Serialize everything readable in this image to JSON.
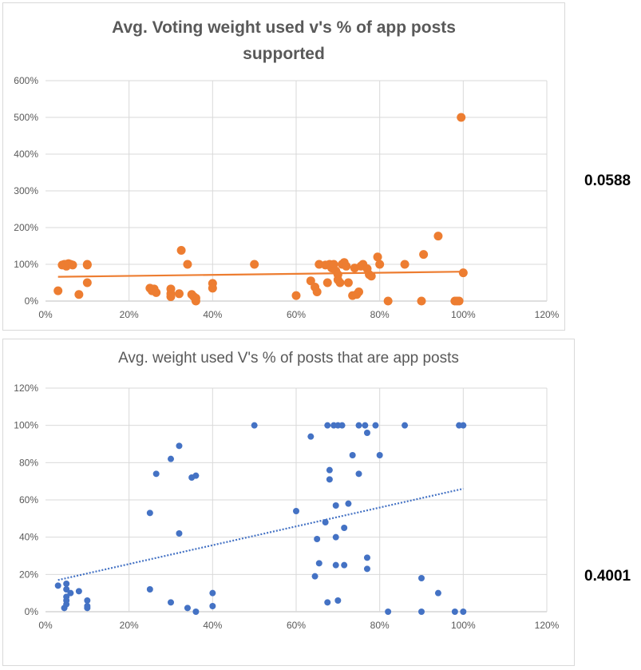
{
  "chart_data": [
    {
      "type": "scatter",
      "title": "Avg. Voting weight used v's % of app posts supported",
      "title_lines": [
        "Avg. Voting weight used v's % of app posts",
        "supported"
      ],
      "xlim": [
        0,
        1.2
      ],
      "ylim": [
        0,
        6
      ],
      "x_ticks": [
        0,
        0.2,
        0.4,
        0.6,
        0.8,
        1.0,
        1.2
      ],
      "y_ticks": [
        0,
        1,
        2,
        3,
        4,
        5,
        6
      ],
      "x_tick_labels": [
        "0%",
        "20%",
        "40%",
        "60%",
        "80%",
        "100%",
        "120%"
      ],
      "y_tick_labels": [
        "0%",
        "100%",
        "200%",
        "300%",
        "400%",
        "500%",
        "600%"
      ],
      "grid": "vertical and horizontal major gridlines",
      "marker_color": "#ed7d31",
      "trendline": {
        "type": "linear",
        "style": "solid",
        "x": [
          0.03,
          1.0
        ],
        "y": [
          0.66,
          0.8
        ]
      },
      "r_squared_label": "0.0588",
      "points": [
        [
          0.03,
          0.28
        ],
        [
          0.04,
          0.98
        ],
        [
          0.045,
          1.0
        ],
        [
          0.05,
          0.95
        ],
        [
          0.05,
          1.0
        ],
        [
          0.055,
          1.02
        ],
        [
          0.06,
          1.0
        ],
        [
          0.065,
          0.98
        ],
        [
          0.08,
          0.18
        ],
        [
          0.1,
          1.0
        ],
        [
          0.1,
          0.98
        ],
        [
          0.1,
          0.5
        ],
        [
          0.25,
          0.35
        ],
        [
          0.255,
          0.28
        ],
        [
          0.26,
          0.33
        ],
        [
          0.265,
          0.23
        ],
        [
          0.3,
          0.33
        ],
        [
          0.3,
          0.2
        ],
        [
          0.3,
          0.12
        ],
        [
          0.32,
          0.2
        ],
        [
          0.325,
          1.38
        ],
        [
          0.34,
          1.0
        ],
        [
          0.35,
          0.18
        ],
        [
          0.355,
          0.12
        ],
        [
          0.36,
          0.08
        ],
        [
          0.36,
          0.0
        ],
        [
          0.4,
          0.48
        ],
        [
          0.4,
          0.35
        ],
        [
          0.5,
          1.0
        ],
        [
          0.6,
          0.15
        ],
        [
          0.635,
          0.55
        ],
        [
          0.645,
          0.38
        ],
        [
          0.65,
          0.25
        ],
        [
          0.655,
          1.0
        ],
        [
          0.67,
          0.98
        ],
        [
          0.675,
          0.5
        ],
        [
          0.68,
          1.0
        ],
        [
          0.685,
          0.9
        ],
        [
          0.69,
          1.0
        ],
        [
          0.695,
          0.82
        ],
        [
          0.7,
          0.72
        ],
        [
          0.7,
          0.58
        ],
        [
          0.705,
          0.5
        ],
        [
          0.71,
          1.0
        ],
        [
          0.715,
          1.05
        ],
        [
          0.72,
          0.95
        ],
        [
          0.725,
          0.5
        ],
        [
          0.735,
          0.15
        ],
        [
          0.74,
          0.9
        ],
        [
          0.745,
          0.18
        ],
        [
          0.75,
          0.25
        ],
        [
          0.755,
          0.95
        ],
        [
          0.76,
          1.0
        ],
        [
          0.77,
          0.88
        ],
        [
          0.775,
          0.72
        ],
        [
          0.78,
          0.68
        ],
        [
          0.795,
          1.2
        ],
        [
          0.8,
          1.0
        ],
        [
          0.82,
          0.0
        ],
        [
          0.86,
          1.0
        ],
        [
          0.9,
          0.0
        ],
        [
          0.905,
          1.27
        ],
        [
          0.94,
          1.77
        ],
        [
          0.98,
          0.0
        ],
        [
          0.985,
          0.0
        ],
        [
          0.99,
          0.0
        ],
        [
          0.995,
          5.0
        ],
        [
          1.0,
          0.77
        ]
      ]
    },
    {
      "type": "scatter",
      "title": "Avg. weight used  V's % of posts that are app posts",
      "xlim": [
        0,
        1.2
      ],
      "ylim": [
        0,
        1.2
      ],
      "x_ticks": [
        0,
        0.2,
        0.4,
        0.6,
        0.8,
        1.0,
        1.2
      ],
      "y_ticks": [
        0,
        0.2,
        0.4,
        0.6,
        0.8,
        1.0,
        1.2
      ],
      "x_tick_labels": [
        "0%",
        "20%",
        "40%",
        "60%",
        "80%",
        "100%",
        "120%"
      ],
      "y_tick_labels": [
        "0%",
        "20%",
        "40%",
        "60%",
        "80%",
        "100%",
        "120%"
      ],
      "grid": "vertical and horizontal major gridlines",
      "marker_color": "#4472c4",
      "trendline": {
        "type": "linear",
        "style": "dotted",
        "x": [
          0.03,
          1.0
        ],
        "y": [
          0.17,
          0.66
        ]
      },
      "r_squared_label": "0.4001",
      "points": [
        [
          0.03,
          0.14
        ],
        [
          0.045,
          0.02
        ],
        [
          0.05,
          0.15
        ],
        [
          0.05,
          0.12
        ],
        [
          0.05,
          0.08
        ],
        [
          0.05,
          0.06
        ],
        [
          0.05,
          0.04
        ],
        [
          0.06,
          0.1
        ],
        [
          0.08,
          0.11
        ],
        [
          0.1,
          0.06
        ],
        [
          0.1,
          0.03
        ],
        [
          0.1,
          0.02
        ],
        [
          0.25,
          0.53
        ],
        [
          0.25,
          0.12
        ],
        [
          0.265,
          0.74
        ],
        [
          0.3,
          0.82
        ],
        [
          0.3,
          0.05
        ],
        [
          0.32,
          0.89
        ],
        [
          0.32,
          0.42
        ],
        [
          0.34,
          0.02
        ],
        [
          0.35,
          0.72
        ],
        [
          0.36,
          0.73
        ],
        [
          0.36,
          0.0
        ],
        [
          0.4,
          0.1
        ],
        [
          0.4,
          0.03
        ],
        [
          0.5,
          1.0
        ],
        [
          0.6,
          0.54
        ],
        [
          0.635,
          0.94
        ],
        [
          0.645,
          0.19
        ],
        [
          0.65,
          0.39
        ],
        [
          0.655,
          0.26
        ],
        [
          0.67,
          0.48
        ],
        [
          0.675,
          0.05
        ],
        [
          0.675,
          1.0
        ],
        [
          0.68,
          0.76
        ],
        [
          0.68,
          0.71
        ],
        [
          0.69,
          1.0
        ],
        [
          0.695,
          0.57
        ],
        [
          0.695,
          0.4
        ],
        [
          0.695,
          0.25
        ],
        [
          0.7,
          0.06
        ],
        [
          0.7,
          1.0
        ],
        [
          0.71,
          1.0
        ],
        [
          0.715,
          0.45
        ],
        [
          0.715,
          0.25
        ],
        [
          0.725,
          0.58
        ],
        [
          0.735,
          0.84
        ],
        [
          0.75,
          1.0
        ],
        [
          0.75,
          0.74
        ],
        [
          0.765,
          1.0
        ],
        [
          0.77,
          0.96
        ],
        [
          0.77,
          0.29
        ],
        [
          0.77,
          0.23
        ],
        [
          0.79,
          1.0
        ],
        [
          0.8,
          0.84
        ],
        [
          0.82,
          0.0
        ],
        [
          0.86,
          1.0
        ],
        [
          0.9,
          0.18
        ],
        [
          0.9,
          0.0
        ],
        [
          0.94,
          0.1
        ],
        [
          0.98,
          0.0
        ],
        [
          0.99,
          1.0
        ],
        [
          1.0,
          1.0
        ],
        [
          1.0,
          0.0
        ]
      ]
    }
  ]
}
